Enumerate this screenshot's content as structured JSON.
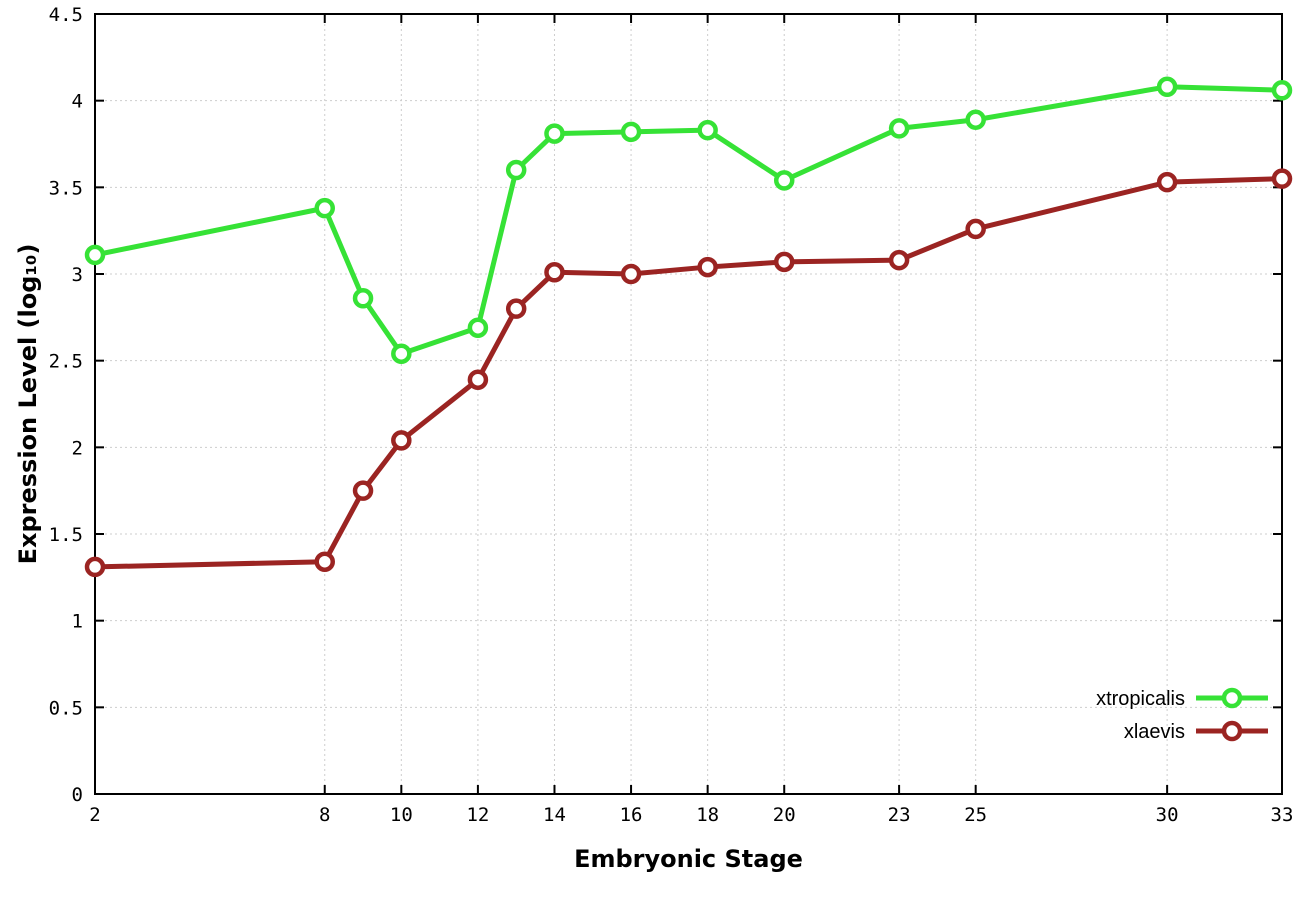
{
  "chart_data": {
    "type": "line",
    "title": "",
    "xlabel": "Embryonic Stage",
    "ylabel": "Expression Level (log₁₀)",
    "xlim": [
      2,
      33
    ],
    "ylim": [
      0,
      4.5
    ],
    "x_ticks": [
      2,
      8,
      10,
      12,
      14,
      16,
      18,
      20,
      23,
      25,
      30,
      33
    ],
    "y_ticks": [
      0,
      0.5,
      1,
      1.5,
      2,
      2.5,
      3,
      3.5,
      4,
      4.5
    ],
    "grid": true,
    "legend_position": "bottom-right",
    "x": [
      2,
      8,
      9,
      10,
      12,
      13,
      14,
      16,
      18,
      20,
      23,
      25,
      30,
      33
    ],
    "series": [
      {
        "name": "xtropicalis",
        "color": "#36e236",
        "values": [
          3.11,
          3.38,
          2.86,
          2.54,
          2.69,
          3.6,
          3.81,
          3.82,
          3.83,
          3.54,
          3.84,
          3.89,
          4.08,
          4.06
        ]
      },
      {
        "name": "xlaevis",
        "color": "#9b2422",
        "values": [
          1.31,
          1.34,
          1.75,
          2.04,
          2.39,
          2.8,
          3.01,
          3.0,
          3.04,
          3.07,
          3.08,
          3.26,
          3.53,
          3.55
        ]
      }
    ]
  }
}
